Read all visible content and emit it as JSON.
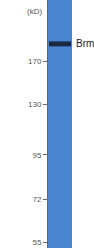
{
  "chart_data": {
    "type": "blot",
    "y_label": "(kD)",
    "log": "y",
    "ylim": [
      53,
      250
    ],
    "yticks": [
      55,
      72,
      95,
      130,
      170
    ],
    "color": "#4a86cf",
    "bands": [
      {
        "label": "Brm",
        "kd": 190,
        "color": "#1b2a45"
      }
    ]
  }
}
